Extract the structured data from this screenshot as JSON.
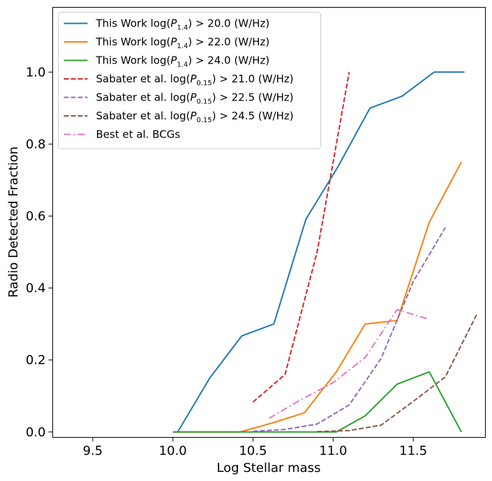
{
  "chart_data": {
    "type": "line",
    "title": "",
    "xlabel": "Log Stellar mass",
    "ylabel": "Radio Detected Fraction",
    "xlim": [
      9.25,
      11.95
    ],
    "ylim": [
      -0.015,
      1.18
    ],
    "xticks": [
      9.5,
      10.0,
      10.5,
      11.0,
      11.5
    ],
    "xtick_labels": [
      "9.5",
      "10.0",
      "10.5",
      "11.0",
      "11.5"
    ],
    "yticks": [
      0.0,
      0.2,
      0.4,
      0.6,
      0.8,
      1.0
    ],
    "ytick_labels": [
      "0.0",
      "0.2",
      "0.4",
      "0.6",
      "0.8",
      "1.0"
    ],
    "grid": false,
    "legend_position": "top-left",
    "series": [
      {
        "name": "This Work log(P1.4) > 20.0 (W/Hz)",
        "legend_main": "This Work log(",
        "legend_var": "P",
        "legend_sub": "1.4",
        "legend_tail": ") > 20.0 (W/Hz)",
        "color": "#1f77b4",
        "style": "solid",
        "x": [
          10.03,
          10.23,
          10.43,
          10.63,
          10.83,
          11.03,
          11.23,
          11.43,
          11.63,
          11.82
        ],
        "y": [
          0.0,
          0.15,
          0.267,
          0.3,
          0.591,
          0.737,
          0.9,
          0.933,
          1.0,
          1.0
        ]
      },
      {
        "name": "This Work log(P1.4) > 22.0 (W/Hz)",
        "legend_main": "This Work log(",
        "legend_var": "P",
        "legend_sub": "1.4",
        "legend_tail": ") > 22.0 (W/Hz)",
        "color": "#ff7f0e",
        "style": "solid",
        "x": [
          10.0,
          10.2,
          10.42,
          10.62,
          10.82,
          11.02,
          11.2,
          11.4,
          11.6,
          11.8
        ],
        "y": [
          0.0,
          0.0,
          0.0,
          0.025,
          0.053,
          0.167,
          0.3,
          0.31,
          0.583,
          0.75
        ]
      },
      {
        "name": "This Work log(P1.4) > 24.0 (W/Hz)",
        "legend_main": "This Work log(",
        "legend_var": "P",
        "legend_sub": "1.4",
        "legend_tail": ") > 24.0 (W/Hz)",
        "color": "#2ca02c",
        "style": "solid",
        "x": [
          10.0,
          10.2,
          10.42,
          10.62,
          10.82,
          11.02,
          11.2,
          11.4,
          11.6,
          11.8
        ],
        "y": [
          0.0,
          0.0,
          0.0,
          0.0,
          0.0,
          0.0,
          0.045,
          0.133,
          0.167,
          0.0
        ]
      },
      {
        "name": "Sabater et al. log(P0.15) > 21.0 (W/Hz)",
        "legend_main": "Sabater et al. log(",
        "legend_var": "P",
        "legend_sub": "0.15",
        "legend_tail": ") > 21.0 (W/Hz)",
        "color": "#d62728",
        "style": "dashed",
        "x": [
          10.5,
          10.7,
          10.9,
          11.1
        ],
        "y": [
          0.083,
          0.16,
          0.5,
          1.0
        ]
      },
      {
        "name": "Sabater et al. log(P0.15) > 22.5 (W/Hz)",
        "legend_main": "Sabater et al. log(",
        "legend_var": "P",
        "legend_sub": "0.15",
        "legend_tail": ") > 22.5 (W/Hz)",
        "color": "#9467bd",
        "style": "dashed",
        "x": [
          10.5,
          10.7,
          10.9,
          11.1,
          11.3,
          11.5,
          11.7
        ],
        "y": [
          0.002,
          0.007,
          0.022,
          0.075,
          0.205,
          0.418,
          0.568
        ]
      },
      {
        "name": "Sabater et al. log(P0.15) > 24.5 (W/Hz)",
        "legend_main": "Sabater et al. log(",
        "legend_var": "P",
        "legend_sub": "0.15",
        "legend_tail": ") > 24.5 (W/Hz)",
        "color": "#8c564b",
        "style": "dashed",
        "x": [
          10.9,
          11.1,
          11.3,
          11.5,
          11.7,
          11.9
        ],
        "y": [
          0.001,
          0.004,
          0.019,
          0.085,
          0.153,
          0.33
        ]
      },
      {
        "name": "Best et al. BCGs",
        "legend_main": "Best et al. BCGs",
        "legend_var": "",
        "legend_sub": "",
        "legend_tail": "",
        "color": "#e377c2",
        "style": "dashdot",
        "x": [
          10.6,
          10.8,
          11.0,
          11.2,
          11.4,
          11.6
        ],
        "y": [
          0.038,
          0.09,
          0.137,
          0.207,
          0.34,
          0.313
        ]
      }
    ]
  }
}
